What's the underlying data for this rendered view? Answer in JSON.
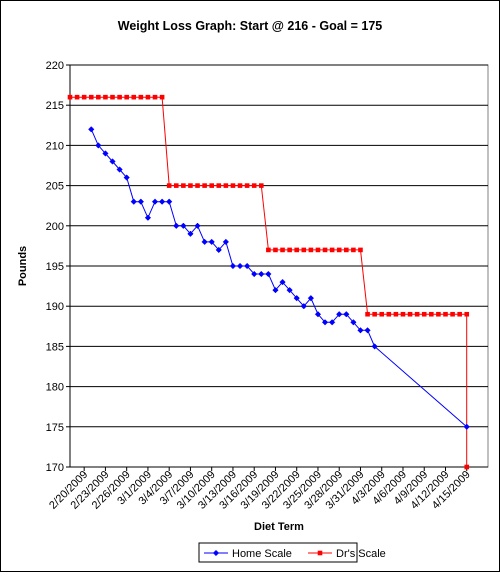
{
  "chart_data": {
    "type": "line",
    "title": "Weight Loss Graph: Start @ 216 - Goal = 175",
    "xlabel": "Diet Term",
    "ylabel": "Pounds",
    "ylim": [
      170,
      220
    ],
    "y_ticks": [
      170,
      175,
      180,
      185,
      190,
      195,
      200,
      205,
      210,
      215,
      220
    ],
    "xlim": [
      "2/18/2009",
      "4/18/2009"
    ],
    "x_tick_labels": [
      "2/20/2009",
      "2/23/2009",
      "2/26/2009",
      "3/1/2009",
      "3/4/2009",
      "3/7/2009",
      "3/10/2009",
      "3/13/2009",
      "3/16/2009",
      "3/19/2009",
      "3/22/2009",
      "3/25/2009",
      "3/28/2009",
      "3/31/2009",
      "4/3/2009",
      "4/6/2009",
      "4/9/2009",
      "4/12/2009",
      "4/15/2009"
    ],
    "grid": "horizontal",
    "legend_position": "bottom",
    "series": [
      {
        "name": "Home Scale",
        "color": "#0000ff",
        "marker": "diamond",
        "points": [
          [
            "2/21/2009",
            212
          ],
          [
            "2/22/2009",
            210
          ],
          [
            "2/23/2009",
            209
          ],
          [
            "2/24/2009",
            208
          ],
          [
            "2/25/2009",
            207
          ],
          [
            "2/26/2009",
            206
          ],
          [
            "2/27/2009",
            203
          ],
          [
            "2/28/2009",
            203
          ],
          [
            "3/1/2009",
            201
          ],
          [
            "3/2/2009",
            203
          ],
          [
            "3/3/2009",
            203
          ],
          [
            "3/4/2009",
            203
          ],
          [
            "3/5/2009",
            200
          ],
          [
            "3/6/2009",
            200
          ],
          [
            "3/7/2009",
            199
          ],
          [
            "3/8/2009",
            200
          ],
          [
            "3/9/2009",
            198
          ],
          [
            "3/10/2009",
            198
          ],
          [
            "3/11/2009",
            197
          ],
          [
            "3/12/2009",
            198
          ],
          [
            "3/13/2009",
            195
          ],
          [
            "3/14/2009",
            195
          ],
          [
            "3/15/2009",
            195
          ],
          [
            "3/16/2009",
            194
          ],
          [
            "3/17/2009",
            194
          ],
          [
            "3/18/2009",
            194
          ],
          [
            "3/19/2009",
            192
          ],
          [
            "3/20/2009",
            193
          ],
          [
            "3/21/2009",
            192
          ],
          [
            "3/22/2009",
            191
          ],
          [
            "3/23/2009",
            190
          ],
          [
            "3/24/2009",
            191
          ],
          [
            "3/25/2009",
            189
          ],
          [
            "3/26/2009",
            188
          ],
          [
            "3/27/2009",
            188
          ],
          [
            "3/28/2009",
            189
          ],
          [
            "3/29/2009",
            189
          ],
          [
            "3/30/2009",
            188
          ],
          [
            "3/31/2009",
            187
          ],
          [
            "4/1/2009",
            187
          ],
          [
            "4/2/2009",
            185
          ],
          [
            "4/15/2009",
            175
          ]
        ]
      },
      {
        "name": "Dr's Scale",
        "color": "#ff0000",
        "marker": "square",
        "points": [
          [
            "2/18/2009",
            216
          ],
          [
            "2/19/2009",
            216
          ],
          [
            "2/20/2009",
            216
          ],
          [
            "2/21/2009",
            216
          ],
          [
            "2/22/2009",
            216
          ],
          [
            "2/23/2009",
            216
          ],
          [
            "2/24/2009",
            216
          ],
          [
            "2/25/2009",
            216
          ],
          [
            "2/26/2009",
            216
          ],
          [
            "2/27/2009",
            216
          ],
          [
            "2/28/2009",
            216
          ],
          [
            "3/1/2009",
            216
          ],
          [
            "3/2/2009",
            216
          ],
          [
            "3/3/2009",
            216
          ],
          [
            "3/4/2009",
            205
          ],
          [
            "3/5/2009",
            205
          ],
          [
            "3/6/2009",
            205
          ],
          [
            "3/7/2009",
            205
          ],
          [
            "3/8/2009",
            205
          ],
          [
            "3/9/2009",
            205
          ],
          [
            "3/10/2009",
            205
          ],
          [
            "3/11/2009",
            205
          ],
          [
            "3/12/2009",
            205
          ],
          [
            "3/13/2009",
            205
          ],
          [
            "3/14/2009",
            205
          ],
          [
            "3/15/2009",
            205
          ],
          [
            "3/16/2009",
            205
          ],
          [
            "3/17/2009",
            205
          ],
          [
            "3/18/2009",
            197
          ],
          [
            "3/19/2009",
            197
          ],
          [
            "3/20/2009",
            197
          ],
          [
            "3/21/2009",
            197
          ],
          [
            "3/22/2009",
            197
          ],
          [
            "3/23/2009",
            197
          ],
          [
            "3/24/2009",
            197
          ],
          [
            "3/25/2009",
            197
          ],
          [
            "3/26/2009",
            197
          ],
          [
            "3/27/2009",
            197
          ],
          [
            "3/28/2009",
            197
          ],
          [
            "3/29/2009",
            197
          ],
          [
            "3/30/2009",
            197
          ],
          [
            "3/31/2009",
            197
          ],
          [
            "4/1/2009",
            189
          ],
          [
            "4/2/2009",
            189
          ],
          [
            "4/3/2009",
            189
          ],
          [
            "4/4/2009",
            189
          ],
          [
            "4/5/2009",
            189
          ],
          [
            "4/6/2009",
            189
          ],
          [
            "4/7/2009",
            189
          ],
          [
            "4/8/2009",
            189
          ],
          [
            "4/9/2009",
            189
          ],
          [
            "4/10/2009",
            189
          ],
          [
            "4/11/2009",
            189
          ],
          [
            "4/12/2009",
            189
          ],
          [
            "4/13/2009",
            189
          ],
          [
            "4/14/2009",
            189
          ],
          [
            "4/15/2009",
            189
          ],
          [
            "4/15/2009",
            170
          ]
        ]
      }
    ]
  }
}
